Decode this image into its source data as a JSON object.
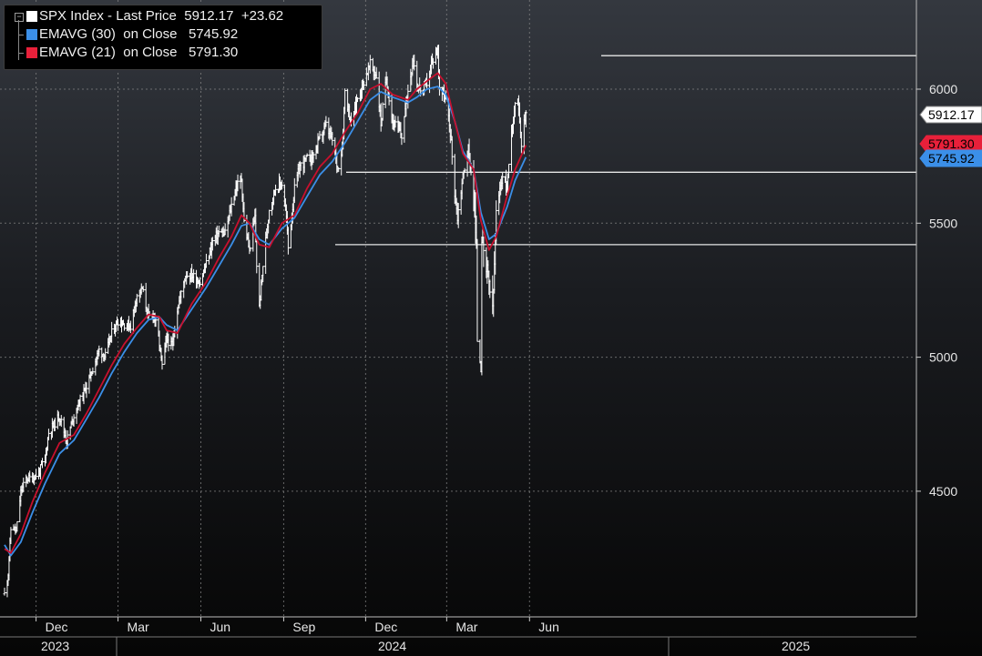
{
  "legend": {
    "main": {
      "label": "SPX Index - Last Price",
      "value": "5912.17",
      "change": "+23.62",
      "color": "#ffffff"
    },
    "ema30": {
      "label": "EMAVG (30)  on Close",
      "value": "5745.92",
      "color": "#3b8fe8"
    },
    "ema21": {
      "label": "EMAVG (21)  on Close",
      "value": "5791.30",
      "color": "#e8203a"
    }
  },
  "colors": {
    "price": "#ffffff",
    "ema30": "#3b8fe8",
    "ema21": "#c8102e",
    "grid": "#8a8a8a",
    "hline": "#e6e6e6"
  },
  "chart_data": {
    "type": "line",
    "title": "SPX Index",
    "y_ticks": [
      4500,
      5000,
      5500,
      6000
    ],
    "ylim": [
      4180,
      6330
    ],
    "grid": true,
    "legend_position": "top-left",
    "x_ticks": [
      "Dec",
      "Mar",
      "Jun",
      "Sep",
      "Dec",
      "Mar",
      "Jun"
    ],
    "years": [
      "2023",
      "2024",
      "2025"
    ],
    "horizontal_lines": [
      6125,
      5690,
      5420
    ],
    "last_value_labels": [
      "5912.17",
      "5791.30",
      "5745.92"
    ],
    "series": [
      {
        "name": "SPX Index - Last Price",
        "x": [
          "2023-10-27",
          "2023-10-31",
          "2023-11-03",
          "2023-11-06",
          "2023-11-09",
          "2023-11-14",
          "2023-11-20",
          "2023-11-27",
          "2023-12-04",
          "2023-12-11",
          "2023-12-15",
          "2023-12-22",
          "2023-12-27",
          "2024-01-04",
          "2024-01-12",
          "2024-01-19",
          "2024-01-26",
          "2024-02-02",
          "2024-02-09",
          "2024-02-16",
          "2024-02-23",
          "2024-03-01",
          "2024-03-08",
          "2024-03-15",
          "2024-03-22",
          "2024-03-28",
          "2024-04-04",
          "2024-04-10",
          "2024-04-16",
          "2024-04-19",
          "2024-04-24",
          "2024-04-30",
          "2024-05-06",
          "2024-05-15",
          "2024-05-22",
          "2024-05-31",
          "2024-06-07",
          "2024-06-14",
          "2024-06-21",
          "2024-06-28",
          "2024-07-05",
          "2024-07-10",
          "2024-07-16",
          "2024-07-19",
          "2024-07-25",
          "2024-07-31",
          "2024-08-02",
          "2024-08-05",
          "2024-08-09",
          "2024-08-16",
          "2024-08-23",
          "2024-08-30",
          "2024-09-04",
          "2024-09-06",
          "2024-09-13",
          "2024-09-19",
          "2024-09-27",
          "2024-10-04",
          "2024-10-11",
          "2024-10-18",
          "2024-10-25",
          "2024-10-31",
          "2024-11-05",
          "2024-11-08",
          "2024-11-15",
          "2024-11-22",
          "2024-11-29",
          "2024-12-06",
          "2024-12-13",
          "2024-12-18",
          "2024-12-24",
          "2024-12-31",
          "2025-01-10",
          "2025-01-17",
          "2025-01-23",
          "2025-01-27",
          "2025-02-03",
          "2025-02-07",
          "2025-02-14",
          "2025-02-19",
          "2025-02-21",
          "2025-02-28",
          "2025-03-05",
          "2025-03-10",
          "2025-03-13",
          "2025-03-19",
          "2025-03-25",
          "2025-03-31",
          "2025-04-03",
          "2025-04-04",
          "2025-04-08",
          "2025-04-09",
          "2025-04-11",
          "2025-04-17",
          "2025-04-21",
          "2025-04-25",
          "2025-05-02",
          "2025-05-07",
          "2025-05-12",
          "2025-05-16",
          "2025-05-20",
          "2025-05-23",
          "2025-05-28"
        ],
        "values": [
          4117,
          4194,
          4358,
          4365,
          4347,
          4496,
          4547,
          4550,
          4569,
          4622,
          4719,
          4755,
          4782,
          4688,
          4784,
          4840,
          4891,
          4958,
          5026,
          5005,
          5089,
          5137,
          5124,
          5117,
          5234,
          5254,
          5147,
          5160,
          5051,
          4967,
          5071,
          5036,
          5180,
          5308,
          5307,
          5278,
          5347,
          5431,
          5465,
          5460,
          5567,
          5633,
          5667,
          5505,
          5400,
          5522,
          5346,
          5186,
          5344,
          5554,
          5634,
          5648,
          5520,
          5408,
          5626,
          5713,
          5738,
          5751,
          5815,
          5864,
          5808,
          5705,
          5782,
          5996,
          5870,
          5969,
          6032,
          6090,
          6051,
          5872,
          6040,
          5882,
          5827,
          5996,
          6118,
          6012,
          5994,
          6026,
          6114,
          6144,
          6013,
          5954,
          5842,
          5614,
          5522,
          5675,
          5776,
          5612,
          5397,
          5074,
          4982,
          5456,
          5363,
          5282,
          5158,
          5525,
          5686,
          5631,
          5844,
          5958,
          5940,
          5802,
          5912
        ]
      },
      {
        "name": "EMAVG (30) on Close",
        "x": [
          "2023-10-27",
          "2023-11-03",
          "2023-11-14",
          "2023-11-27",
          "2023-12-11",
          "2023-12-27",
          "2024-01-12",
          "2024-01-26",
          "2024-02-09",
          "2024-02-23",
          "2024-03-08",
          "2024-03-22",
          "2024-04-04",
          "2024-04-16",
          "2024-04-24",
          "2024-05-06",
          "2024-05-22",
          "2024-06-07",
          "2024-06-21",
          "2024-07-05",
          "2024-07-16",
          "2024-07-25",
          "2024-08-05",
          "2024-08-16",
          "2024-08-30",
          "2024-09-13",
          "2024-09-27",
          "2024-10-11",
          "2024-10-25",
          "2024-11-08",
          "2024-11-22",
          "2024-12-06",
          "2024-12-18",
          "2024-12-31",
          "2025-01-17",
          "2025-01-27",
          "2025-02-07",
          "2025-02-19",
          "2025-02-28",
          "2025-03-10",
          "2025-03-19",
          "2025-03-31",
          "2025-04-08",
          "2025-04-17",
          "2025-04-25",
          "2025-05-07",
          "2025-05-16",
          "2025-05-28"
        ],
        "values": [
          4300,
          4260,
          4310,
          4420,
          4530,
          4640,
          4690,
          4770,
          4850,
          4940,
          5020,
          5090,
          5140,
          5150,
          5120,
          5100,
          5180,
          5260,
          5340,
          5420,
          5490,
          5500,
          5440,
          5420,
          5480,
          5520,
          5600,
          5680,
          5730,
          5800,
          5880,
          5960,
          5990,
          5970,
          5950,
          5970,
          6000,
          6010,
          5980,
          5880,
          5770,
          5700,
          5540,
          5440,
          5460,
          5560,
          5660,
          5746
        ]
      },
      {
        "name": "EMAVG (21) on Close",
        "x": [
          "2023-10-27",
          "2023-11-03",
          "2023-11-14",
          "2023-11-27",
          "2023-12-11",
          "2023-12-27",
          "2024-01-12",
          "2024-01-26",
          "2024-02-09",
          "2024-02-23",
          "2024-03-08",
          "2024-03-22",
          "2024-04-04",
          "2024-04-16",
          "2024-04-24",
          "2024-05-06",
          "2024-05-22",
          "2024-06-07",
          "2024-06-21",
          "2024-07-05",
          "2024-07-16",
          "2024-07-25",
          "2024-08-05",
          "2024-08-16",
          "2024-08-30",
          "2024-09-13",
          "2024-09-27",
          "2024-10-11",
          "2024-10-25",
          "2024-11-08",
          "2024-11-22",
          "2024-12-06",
          "2024-12-18",
          "2024-12-31",
          "2025-01-17",
          "2025-01-27",
          "2025-02-07",
          "2025-02-19",
          "2025-02-28",
          "2025-03-10",
          "2025-03-19",
          "2025-03-31",
          "2025-04-08",
          "2025-04-17",
          "2025-04-25",
          "2025-05-07",
          "2025-05-16",
          "2025-05-28"
        ],
        "values": [
          4285,
          4270,
          4340,
          4460,
          4570,
          4680,
          4710,
          4790,
          4880,
          4970,
          5050,
          5110,
          5160,
          5150,
          5100,
          5090,
          5200,
          5280,
          5370,
          5450,
          5530,
          5500,
          5420,
          5410,
          5500,
          5530,
          5630,
          5710,
          5760,
          5840,
          5910,
          6000,
          6020,
          5980,
          5960,
          6000,
          6030,
          6060,
          6020,
          5880,
          5760,
          5700,
          5510,
          5400,
          5450,
          5600,
          5700,
          5791
        ]
      }
    ]
  }
}
